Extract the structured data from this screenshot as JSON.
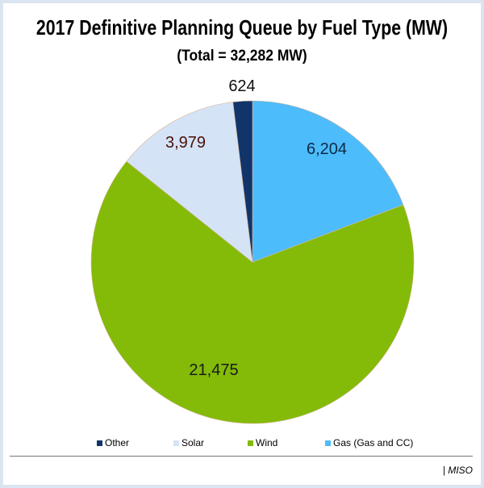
{
  "chart_data": {
    "type": "pie",
    "title": "2017 Definitive Planning Queue by Fuel Type (MW)",
    "subtitle": "(Total = 32,282 MW)",
    "start": "12 o'clock, clockwise",
    "slices": [
      {
        "name": "Gas (Gas and CC)",
        "value": 6204,
        "label": "6,204",
        "color": "#4dbcfb",
        "label_color": "#0d2a45"
      },
      {
        "name": "Wind",
        "value": 21475,
        "label": "21,475",
        "color": "#83bb08",
        "label_color": "#1a1a1a"
      },
      {
        "name": "Solar",
        "value": 3979,
        "label": "3,979",
        "color": "#d5e3f7",
        "label_color": "#4a1208"
      },
      {
        "name": "Other",
        "value": 624,
        "label": "624",
        "color": "#11356a",
        "label_color": "#111111"
      }
    ],
    "legend_order": [
      "Other",
      "Solar",
      "Wind",
      "Gas (Gas and CC)"
    ],
    "legend_placement": "bottom"
  },
  "footer": {
    "source": "| MISO"
  }
}
